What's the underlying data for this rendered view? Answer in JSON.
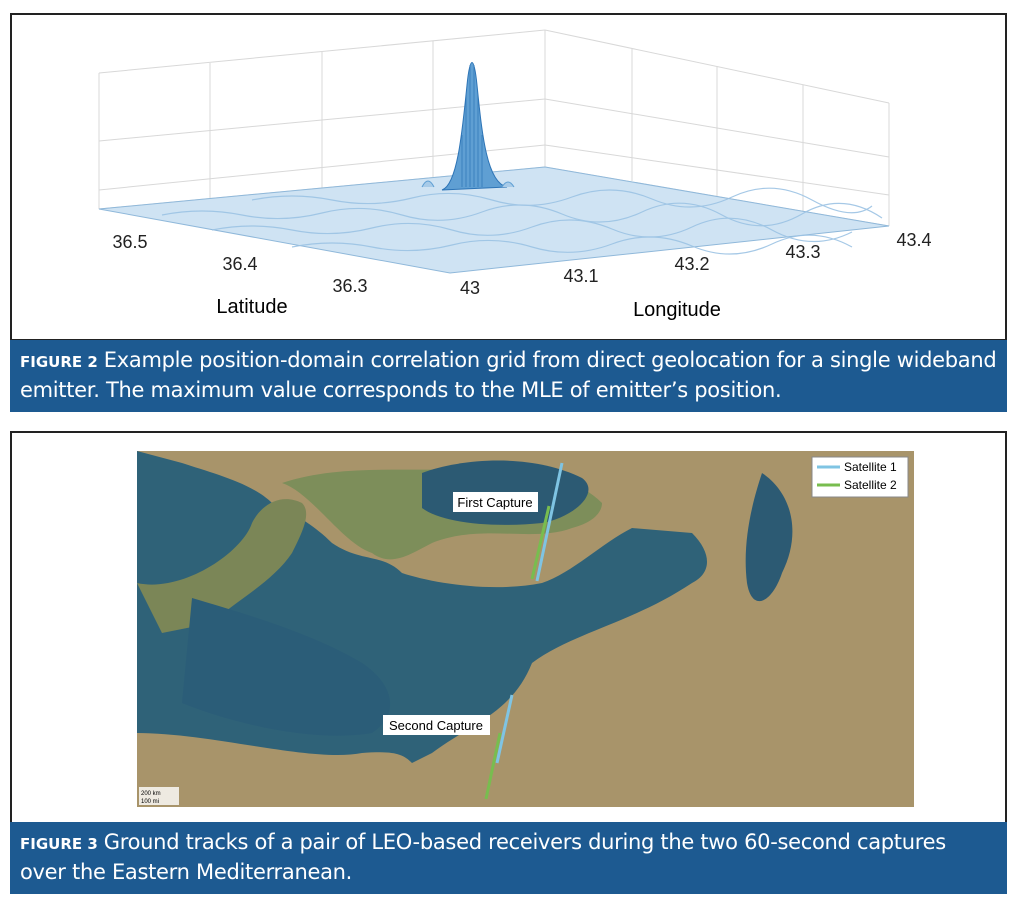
{
  "figures": [
    {
      "label": "FIGURE 2",
      "caption": "Example position-domain correlation grid from direct geolocation for a single wideband emitter. The maximum value corresponds to the MLE of emitter’s position.",
      "x_axis_label": "Latitude",
      "y_axis_label": "Longitude",
      "latitude_ticks": [
        "36.5",
        "36.4",
        "36.3"
      ],
      "longitude_ticks": [
        "43",
        "43.1",
        "43.2",
        "43.3",
        "43.4"
      ]
    },
    {
      "label": "FIGURE 3",
      "caption": "Ground tracks of a pair of LEO-based receivers during the two 60-second captures over the Eastern Mediterranean.",
      "annotations": [
        "First Capture",
        "Second Capture"
      ],
      "legend": [
        "Satellite 1",
        "Satellite 2"
      ],
      "scale": [
        "200 km",
        "100 mi"
      ]
    }
  ]
}
